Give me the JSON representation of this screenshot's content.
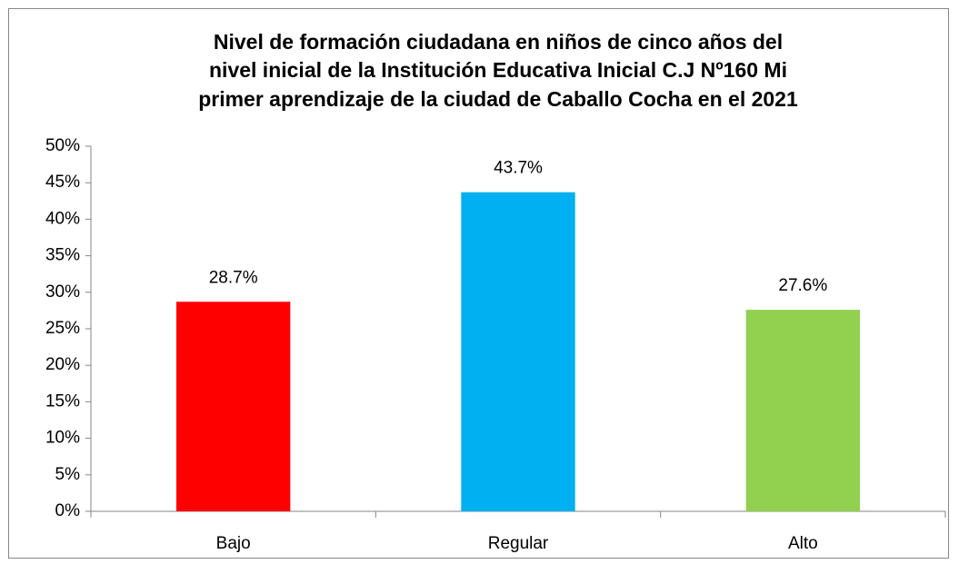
{
  "chart_data": {
    "type": "bar",
    "title": [
      "Nivel de formación ciudadana en niños de cinco años del",
      "nivel inicial de la Institución Educativa Inicial C.J Nº160 Mi",
      "primer aprendizaje de la ciudad de Caballo Cocha en el 2021"
    ],
    "categories": [
      "Bajo",
      "Regular",
      "Alto"
    ],
    "values": [
      28.7,
      43.7,
      27.6
    ],
    "value_labels": [
      "28.7%",
      "43.7%",
      "27.6%"
    ],
    "colors": [
      "#ff0000",
      "#00b0f0",
      "#92d050"
    ],
    "ylim": [
      0,
      50
    ],
    "yticks": [
      {
        "value": 0,
        "label": "0%"
      },
      {
        "value": 5,
        "label": "5%"
      },
      {
        "value": 10,
        "label": "10%"
      },
      {
        "value": 15,
        "label": "15%"
      },
      {
        "value": 20,
        "label": "20%"
      },
      {
        "value": 25,
        "label": "25%"
      },
      {
        "value": 30,
        "label": "30%"
      },
      {
        "value": 35,
        "label": "35%"
      },
      {
        "value": 40,
        "label": "40%"
      },
      {
        "value": 45,
        "label": "45%"
      },
      {
        "value": 50,
        "label": "50%"
      }
    ],
    "grid": false
  }
}
